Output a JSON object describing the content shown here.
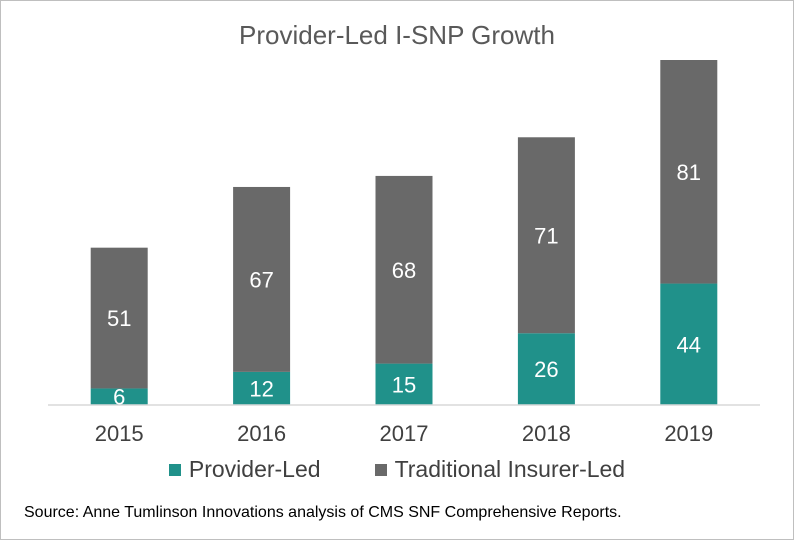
{
  "chart_data": {
    "type": "bar",
    "stacked": true,
    "title": "Provider-Led I-SNP Growth",
    "categories": [
      "2015",
      "2016",
      "2017",
      "2018",
      "2019"
    ],
    "series": [
      {
        "name": "Provider-Led",
        "values": [
          6,
          12,
          15,
          26,
          44
        ],
        "color": "#20918a"
      },
      {
        "name": "Traditional Insurer-Led",
        "values": [
          51,
          67,
          68,
          71,
          81
        ],
        "color": "#696969"
      }
    ],
    "ylim": [
      0,
      125
    ],
    "grid": false,
    "legend_position": "bottom",
    "data_labels": true
  },
  "source_note": "Source: Anne Tumlinson Innovations analysis of CMS SNF Comprehensive Reports."
}
